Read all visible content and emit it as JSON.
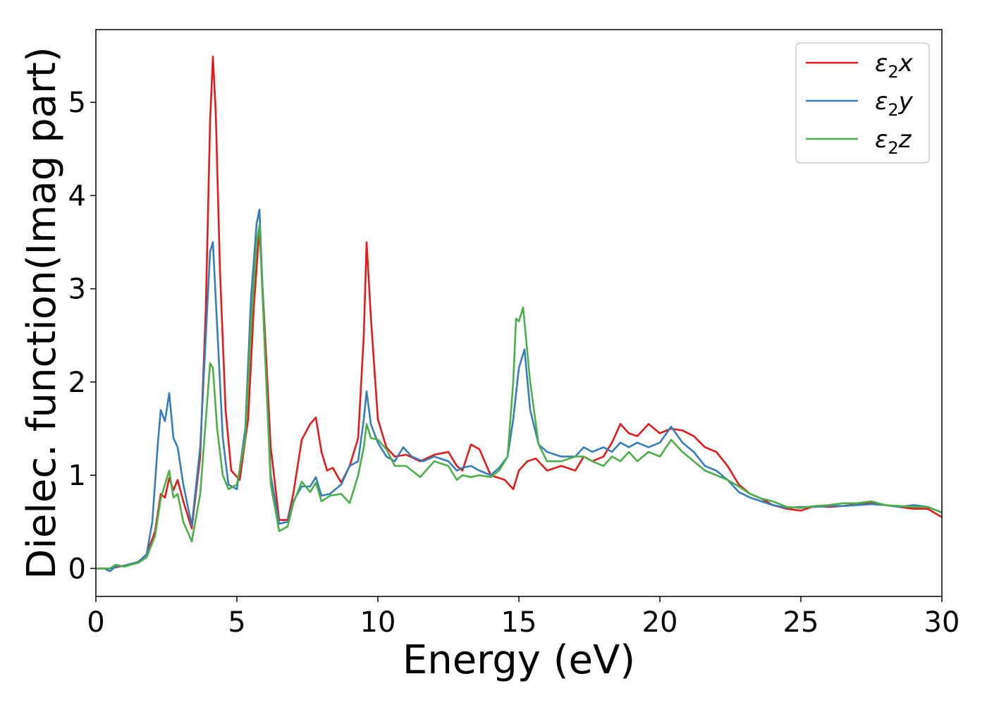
{
  "chart_data": {
    "type": "line",
    "xlabel": "Energy (eV)",
    "ylabel": "Dielec. function(Imag part)",
    "xlim": [
      0,
      30
    ],
    "ylim": [
      -0.3,
      5.78
    ],
    "xticks": [
      0,
      5,
      10,
      15,
      20,
      25,
      30
    ],
    "xtick_labels": [
      "0",
      "5",
      "10",
      "15",
      "20",
      "25",
      "30"
    ],
    "yticks": [
      0,
      1,
      2,
      3,
      4,
      5
    ],
    "ytick_labels": [
      "0",
      "1",
      "2",
      "3",
      "4",
      "5"
    ],
    "grid": false,
    "legend_position": "top-right",
    "series": [
      {
        "name": "ε2x",
        "label_base": "ε",
        "label_sub": "2",
        "label_tail": "x",
        "color": "#e41a1c",
        "points": [
          [
            0,
            0
          ],
          [
            0.5,
            0
          ],
          [
            1,
            0.03
          ],
          [
            1.5,
            0.07
          ],
          [
            1.8,
            0.15
          ],
          [
            2.1,
            0.4
          ],
          [
            2.3,
            0.8
          ],
          [
            2.45,
            0.76
          ],
          [
            2.6,
            0.97
          ],
          [
            2.75,
            0.84
          ],
          [
            2.9,
            0.95
          ],
          [
            3.1,
            0.72
          ],
          [
            3.4,
            0.43
          ],
          [
            3.7,
            1.2
          ],
          [
            3.9,
            2.8
          ],
          [
            4.05,
            4.8
          ],
          [
            4.15,
            5.49
          ],
          [
            4.25,
            4.9
          ],
          [
            4.4,
            3.2
          ],
          [
            4.6,
            1.7
          ],
          [
            4.8,
            1.05
          ],
          [
            5.1,
            0.95
          ],
          [
            5.4,
            1.6
          ],
          [
            5.6,
            2.8
          ],
          [
            5.8,
            3.65
          ],
          [
            6.0,
            2.5
          ],
          [
            6.2,
            1.3
          ],
          [
            6.5,
            0.52
          ],
          [
            6.8,
            0.52
          ],
          [
            7.0,
            0.8
          ],
          [
            7.3,
            1.38
          ],
          [
            7.6,
            1.55
          ],
          [
            7.8,
            1.62
          ],
          [
            8.0,
            1.25
          ],
          [
            8.2,
            1.05
          ],
          [
            8.4,
            1.08
          ],
          [
            8.7,
            0.92
          ],
          [
            9.0,
            1.1
          ],
          [
            9.3,
            1.4
          ],
          [
            9.5,
            2.5
          ],
          [
            9.6,
            3.5
          ],
          [
            9.75,
            2.7
          ],
          [
            10.0,
            1.6
          ],
          [
            10.3,
            1.3
          ],
          [
            10.6,
            1.2
          ],
          [
            11.0,
            1.22
          ],
          [
            11.5,
            1.15
          ],
          [
            12.0,
            1.22
          ],
          [
            12.5,
            1.25
          ],
          [
            12.8,
            1.1
          ],
          [
            13.0,
            1.05
          ],
          [
            13.3,
            1.33
          ],
          [
            13.6,
            1.28
          ],
          [
            14.0,
            1.0
          ],
          [
            14.5,
            0.95
          ],
          [
            14.8,
            0.85
          ],
          [
            15.0,
            1.05
          ],
          [
            15.3,
            1.15
          ],
          [
            15.6,
            1.18
          ],
          [
            16.0,
            1.05
          ],
          [
            16.5,
            1.1
          ],
          [
            17.0,
            1.05
          ],
          [
            17.3,
            1.2
          ],
          [
            17.6,
            1.15
          ],
          [
            18.0,
            1.2
          ],
          [
            18.3,
            1.35
          ],
          [
            18.6,
            1.55
          ],
          [
            18.9,
            1.45
          ],
          [
            19.2,
            1.42
          ],
          [
            19.6,
            1.55
          ],
          [
            20.0,
            1.45
          ],
          [
            20.4,
            1.5
          ],
          [
            20.8,
            1.48
          ],
          [
            21.2,
            1.42
          ],
          [
            21.6,
            1.3
          ],
          [
            22.0,
            1.25
          ],
          [
            22.4,
            1.1
          ],
          [
            22.8,
            0.9
          ],
          [
            23.2,
            0.8
          ],
          [
            23.6,
            0.75
          ],
          [
            24.0,
            0.68
          ],
          [
            24.5,
            0.64
          ],
          [
            25.0,
            0.62
          ],
          [
            25.5,
            0.67
          ],
          [
            26.0,
            0.66
          ],
          [
            26.5,
            0.67
          ],
          [
            27.0,
            0.69
          ],
          [
            27.5,
            0.7
          ],
          [
            28.0,
            0.68
          ],
          [
            28.5,
            0.66
          ],
          [
            29.0,
            0.64
          ],
          [
            29.5,
            0.64
          ],
          [
            30,
            0.55
          ]
        ]
      },
      {
        "name": "ε2y",
        "label_base": "ε",
        "label_sub": "2",
        "label_tail": "y",
        "color": "#377eb8",
        "points": [
          [
            0,
            0
          ],
          [
            0.3,
            0
          ],
          [
            0.5,
            -0.03
          ],
          [
            0.7,
            0.02
          ],
          [
            1,
            0.03
          ],
          [
            1.5,
            0.07
          ],
          [
            1.8,
            0.15
          ],
          [
            2.0,
            0.5
          ],
          [
            2.2,
            1.35
          ],
          [
            2.3,
            1.7
          ],
          [
            2.45,
            1.58
          ],
          [
            2.6,
            1.88
          ],
          [
            2.75,
            1.4
          ],
          [
            2.9,
            1.3
          ],
          [
            3.1,
            0.9
          ],
          [
            3.4,
            0.46
          ],
          [
            3.7,
            1.3
          ],
          [
            3.9,
            2.5
          ],
          [
            4.05,
            3.4
          ],
          [
            4.15,
            3.5
          ],
          [
            4.3,
            2.6
          ],
          [
            4.5,
            1.4
          ],
          [
            4.7,
            0.9
          ],
          [
            5.0,
            0.85
          ],
          [
            5.3,
            1.5
          ],
          [
            5.5,
            2.9
          ],
          [
            5.7,
            3.7
          ],
          [
            5.8,
            3.85
          ],
          [
            6.0,
            2.3
          ],
          [
            6.2,
            1.0
          ],
          [
            6.5,
            0.48
          ],
          [
            6.8,
            0.5
          ],
          [
            7.0,
            0.72
          ],
          [
            7.3,
            0.88
          ],
          [
            7.6,
            0.88
          ],
          [
            7.8,
            0.98
          ],
          [
            8.0,
            0.78
          ],
          [
            8.3,
            0.8
          ],
          [
            8.7,
            0.9
          ],
          [
            9.0,
            1.1
          ],
          [
            9.3,
            1.15
          ],
          [
            9.5,
            1.6
          ],
          [
            9.6,
            1.9
          ],
          [
            9.75,
            1.55
          ],
          [
            10.0,
            1.35
          ],
          [
            10.3,
            1.2
          ],
          [
            10.6,
            1.15
          ],
          [
            10.9,
            1.3
          ],
          [
            11.2,
            1.2
          ],
          [
            11.6,
            1.15
          ],
          [
            12.0,
            1.2
          ],
          [
            12.5,
            1.15
          ],
          [
            12.8,
            1.05
          ],
          [
            13.0,
            1.08
          ],
          [
            13.3,
            1.1
          ],
          [
            13.6,
            1.05
          ],
          [
            14.0,
            1.0
          ],
          [
            14.3,
            1.08
          ],
          [
            14.6,
            1.2
          ],
          [
            14.8,
            1.6
          ],
          [
            15.0,
            2.15
          ],
          [
            15.2,
            2.35
          ],
          [
            15.4,
            1.7
          ],
          [
            15.7,
            1.33
          ],
          [
            16.0,
            1.25
          ],
          [
            16.5,
            1.2
          ],
          [
            17.0,
            1.2
          ],
          [
            17.3,
            1.3
          ],
          [
            17.6,
            1.25
          ],
          [
            18.0,
            1.3
          ],
          [
            18.3,
            1.25
          ],
          [
            18.6,
            1.35
          ],
          [
            18.9,
            1.3
          ],
          [
            19.2,
            1.35
          ],
          [
            19.6,
            1.3
          ],
          [
            20.0,
            1.35
          ],
          [
            20.4,
            1.52
          ],
          [
            20.8,
            1.35
          ],
          [
            21.2,
            1.25
          ],
          [
            21.6,
            1.1
          ],
          [
            22.0,
            1.05
          ],
          [
            22.4,
            0.95
          ],
          [
            22.8,
            0.82
          ],
          [
            23.2,
            0.76
          ],
          [
            23.6,
            0.72
          ],
          [
            24.0,
            0.68
          ],
          [
            24.5,
            0.65
          ],
          [
            25.0,
            0.66
          ],
          [
            25.5,
            0.66
          ],
          [
            26.0,
            0.67
          ],
          [
            26.5,
            0.67
          ],
          [
            27.0,
            0.68
          ],
          [
            27.5,
            0.69
          ],
          [
            28.0,
            0.68
          ],
          [
            28.5,
            0.66
          ],
          [
            29.0,
            0.68
          ],
          [
            29.5,
            0.66
          ],
          [
            30,
            0.6
          ]
        ]
      },
      {
        "name": "ε2z",
        "label_base": "ε",
        "label_sub": "2",
        "label_tail": "z",
        "color": "#4daf4a",
        "points": [
          [
            0,
            0
          ],
          [
            0.5,
            0
          ],
          [
            0.7,
            0.04
          ],
          [
            1,
            0.02
          ],
          [
            1.5,
            0.06
          ],
          [
            1.8,
            0.12
          ],
          [
            2.1,
            0.35
          ],
          [
            2.3,
            0.75
          ],
          [
            2.45,
            0.9
          ],
          [
            2.6,
            1.05
          ],
          [
            2.75,
            0.76
          ],
          [
            2.9,
            0.8
          ],
          [
            3.1,
            0.5
          ],
          [
            3.4,
            0.29
          ],
          [
            3.7,
            0.8
          ],
          [
            3.9,
            1.6
          ],
          [
            4.05,
            2.2
          ],
          [
            4.15,
            2.15
          ],
          [
            4.3,
            1.5
          ],
          [
            4.5,
            1.0
          ],
          [
            4.7,
            0.85
          ],
          [
            5.0,
            0.9
          ],
          [
            5.3,
            1.4
          ],
          [
            5.5,
            2.6
          ],
          [
            5.7,
            3.5
          ],
          [
            5.8,
            3.68
          ],
          [
            6.0,
            2.3
          ],
          [
            6.2,
            0.9
          ],
          [
            6.5,
            0.4
          ],
          [
            6.8,
            0.45
          ],
          [
            7.0,
            0.7
          ],
          [
            7.3,
            0.93
          ],
          [
            7.6,
            0.82
          ],
          [
            7.8,
            0.92
          ],
          [
            8.0,
            0.72
          ],
          [
            8.3,
            0.78
          ],
          [
            8.7,
            0.8
          ],
          [
            9.0,
            0.7
          ],
          [
            9.3,
            1.0
          ],
          [
            9.5,
            1.3
          ],
          [
            9.6,
            1.55
          ],
          [
            9.75,
            1.4
          ],
          [
            10.0,
            1.38
          ],
          [
            10.3,
            1.28
          ],
          [
            10.6,
            1.1
          ],
          [
            11.0,
            1.1
          ],
          [
            11.5,
            0.98
          ],
          [
            12.0,
            1.15
          ],
          [
            12.5,
            1.1
          ],
          [
            12.8,
            0.95
          ],
          [
            13.0,
            1.0
          ],
          [
            13.3,
            0.98
          ],
          [
            13.6,
            1.0
          ],
          [
            14.0,
            0.98
          ],
          [
            14.3,
            1.05
          ],
          [
            14.6,
            1.2
          ],
          [
            14.8,
            2.0
          ],
          [
            14.9,
            2.68
          ],
          [
            15.0,
            2.65
          ],
          [
            15.15,
            2.8
          ],
          [
            15.4,
            2.0
          ],
          [
            15.7,
            1.33
          ],
          [
            16.0,
            1.15
          ],
          [
            16.5,
            1.15
          ],
          [
            17.0,
            1.2
          ],
          [
            17.3,
            1.2
          ],
          [
            17.6,
            1.15
          ],
          [
            18.0,
            1.1
          ],
          [
            18.3,
            1.2
          ],
          [
            18.6,
            1.15
          ],
          [
            18.9,
            1.25
          ],
          [
            19.2,
            1.15
          ],
          [
            19.6,
            1.25
          ],
          [
            20.0,
            1.2
          ],
          [
            20.4,
            1.38
          ],
          [
            20.8,
            1.25
          ],
          [
            21.2,
            1.15
          ],
          [
            21.6,
            1.05
          ],
          [
            22.0,
            1.0
          ],
          [
            22.4,
            0.95
          ],
          [
            22.8,
            0.88
          ],
          [
            23.2,
            0.8
          ],
          [
            23.6,
            0.75
          ],
          [
            24.0,
            0.72
          ],
          [
            24.5,
            0.66
          ],
          [
            25.0,
            0.65
          ],
          [
            25.5,
            0.67
          ],
          [
            26.0,
            0.68
          ],
          [
            26.5,
            0.7
          ],
          [
            27.0,
            0.7
          ],
          [
            27.5,
            0.72
          ],
          [
            28.0,
            0.68
          ],
          [
            28.5,
            0.67
          ],
          [
            29.0,
            0.66
          ],
          [
            29.5,
            0.66
          ],
          [
            30,
            0.6
          ]
        ]
      }
    ]
  }
}
